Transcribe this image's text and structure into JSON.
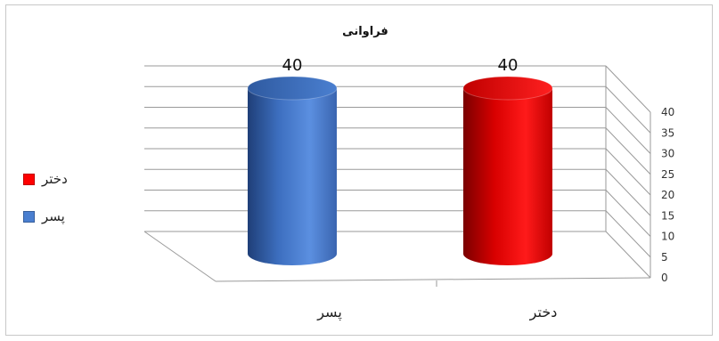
{
  "colors": {
    "blue": "#4a7fd0",
    "red": "#ff0000",
    "grid": "#9a9a9a",
    "frame": "#c8c8c8"
  },
  "chart_data": {
    "type": "bar",
    "style": "3d-cylinder",
    "title": "فراوانی",
    "categories": [
      "پسر",
      "دختر"
    ],
    "values": [
      40,
      40
    ],
    "bar_colors": [
      "#4a7fd0",
      "#ff0000"
    ],
    "data_labels": [
      "40",
      "40"
    ],
    "ylim": [
      0,
      40
    ],
    "yticks": [
      0,
      5,
      10,
      15,
      20,
      25,
      30,
      35,
      40
    ],
    "xlabel": "",
    "ylabel": "",
    "grid": true,
    "legend_position": "left",
    "legend": [
      {
        "label": "دختر",
        "color": "#ff0000"
      },
      {
        "label": "پسر",
        "color": "#4a7fd0"
      }
    ]
  }
}
